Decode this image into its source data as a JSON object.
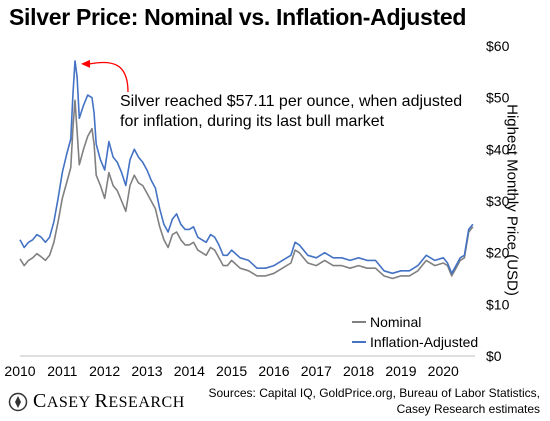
{
  "title": "Silver Price: Nominal vs. Inflation-Adjusted",
  "annotation": {
    "line1": "Silver reached $57.11 per ounce, when adjusted",
    "line2": "for inflation, during its last bull market"
  },
  "sources": {
    "line1": "Sources: Capital IQ, GoldPrice.org, Bureau of Labor Statistics,",
    "line2": "Casey Research estimates"
  },
  "logo": {
    "text_c": "C",
    "text_asey": "ASEY ",
    "text_r": "R",
    "text_esearch": "ESEARCH"
  },
  "colors": {
    "nominal": "#808080",
    "adjusted": "#4472C4",
    "arrow": "#FF0000"
  },
  "chart_data": {
    "type": "line",
    "title": "Silver Price: Nominal vs. Inflation-Adjusted",
    "ylabel": "Highest Monthly Price (USD)",
    "y_axis_position": "right",
    "ylim": [
      0,
      60
    ],
    "y_ticks": [
      "$0",
      "$10",
      "$20",
      "$30",
      "$40",
      "$50",
      "$60"
    ],
    "y_tick_values": [
      0,
      10,
      20,
      30,
      40,
      50,
      60
    ],
    "xlim": [
      2010.0,
      2020.75
    ],
    "x_ticks": [
      "2010",
      "2011",
      "2012",
      "2013",
      "2014",
      "2015",
      "2016",
      "2017",
      "2018",
      "2019",
      "2020"
    ],
    "x_tick_values": [
      2010,
      2011,
      2012,
      2013,
      2014,
      2015,
      2016,
      2017,
      2018,
      2019,
      2020
    ],
    "grid": false,
    "legend": "bottom-right",
    "annotation_point": {
      "x": 2011.3,
      "y": 57.11
    },
    "x": [
      2010.0,
      2010.1,
      2010.2,
      2010.3,
      2010.4,
      2010.5,
      2010.6,
      2010.7,
      2010.8,
      2010.9,
      2011.0,
      2011.1,
      2011.2,
      2011.25,
      2011.3,
      2011.35,
      2011.4,
      2011.5,
      2011.6,
      2011.7,
      2011.75,
      2011.8,
      2011.9,
      2012.0,
      2012.1,
      2012.2,
      2012.3,
      2012.4,
      2012.5,
      2012.6,
      2012.7,
      2012.8,
      2012.9,
      2013.0,
      2013.1,
      2013.2,
      2013.3,
      2013.4,
      2013.5,
      2013.6,
      2013.7,
      2013.8,
      2013.9,
      2014.0,
      2014.1,
      2014.2,
      2014.3,
      2014.4,
      2014.5,
      2014.6,
      2014.7,
      2014.8,
      2014.9,
      2015.0,
      2015.2,
      2015.4,
      2015.6,
      2015.8,
      2016.0,
      2016.2,
      2016.4,
      2016.5,
      2016.6,
      2016.8,
      2017.0,
      2017.2,
      2017.4,
      2017.6,
      2017.8,
      2018.0,
      2018.2,
      2018.4,
      2018.6,
      2018.8,
      2019.0,
      2019.2,
      2019.4,
      2019.6,
      2019.8,
      2020.0,
      2020.1,
      2020.2,
      2020.3,
      2020.4,
      2020.5,
      2020.6,
      2020.7
    ],
    "series": [
      {
        "name": "Nominal",
        "values": [
          18.8,
          17.5,
          18.5,
          19.0,
          19.8,
          19.2,
          18.5,
          19.5,
          22.0,
          26.0,
          30.5,
          33.5,
          36.5,
          44.0,
          49.5,
          43.5,
          37.0,
          40.0,
          42.5,
          44.0,
          41.0,
          35.0,
          33.0,
          30.5,
          35.5,
          33.0,
          32.0,
          30.0,
          28.0,
          33.0,
          35.0,
          33.5,
          33.0,
          31.5,
          30.0,
          28.5,
          25.0,
          22.5,
          21.0,
          23.5,
          24.0,
          22.5,
          21.5,
          21.5,
          22.0,
          20.5,
          20.0,
          19.5,
          21.0,
          20.5,
          19.0,
          17.5,
          17.5,
          18.5,
          17.0,
          16.5,
          15.5,
          15.5,
          16.0,
          17.0,
          18.0,
          20.5,
          20.0,
          18.0,
          17.5,
          18.5,
          17.5,
          17.5,
          17.0,
          17.5,
          17.0,
          17.0,
          15.5,
          15.0,
          15.5,
          15.5,
          16.5,
          18.5,
          17.5,
          18.0,
          17.5,
          15.5,
          17.0,
          18.5,
          19.0,
          24.0,
          25.0
        ]
      },
      {
        "name": "Inflation-Adjusted",
        "values": [
          22.5,
          21.0,
          22.0,
          22.5,
          23.5,
          23.0,
          22.0,
          23.0,
          26.0,
          30.5,
          35.5,
          39.0,
          42.0,
          50.5,
          57.11,
          54.0,
          46.0,
          48.5,
          50.5,
          50.0,
          47.0,
          41.0,
          38.0,
          36.0,
          41.5,
          38.5,
          37.5,
          35.5,
          33.0,
          38.0,
          40.0,
          38.5,
          37.5,
          36.0,
          34.0,
          32.5,
          28.5,
          25.5,
          24.0,
          26.5,
          27.5,
          25.5,
          24.5,
          24.5,
          25.0,
          23.0,
          22.5,
          22.0,
          23.5,
          23.0,
          21.5,
          19.5,
          19.5,
          20.5,
          19.0,
          18.5,
          17.0,
          17.0,
          17.5,
          18.5,
          19.5,
          22.0,
          21.5,
          19.5,
          19.0,
          20.0,
          19.0,
          19.0,
          18.5,
          19.0,
          18.5,
          18.5,
          16.5,
          16.0,
          16.5,
          16.5,
          17.5,
          19.5,
          18.5,
          19.0,
          18.0,
          16.0,
          17.5,
          19.0,
          19.5,
          24.5,
          25.5
        ]
      }
    ]
  }
}
